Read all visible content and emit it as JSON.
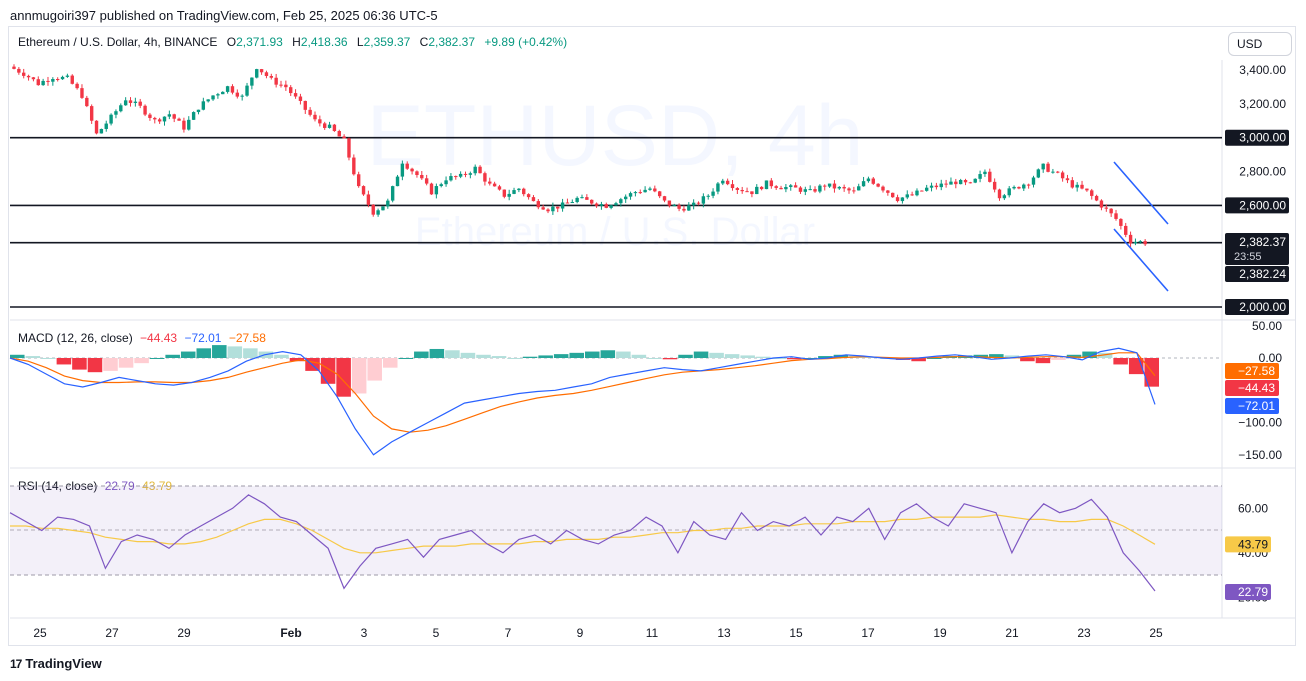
{
  "header": {
    "published_text": "annmugoiri397 published on TradingView.com, Feb 25, 2025 06:36 UTC-5"
  },
  "legend": {
    "symbol": "Ethereum / U.S. Dollar, 4h, BINANCE",
    "o_label": "O",
    "o_value": "2,371.93",
    "h_label": "H",
    "h_value": "2,418.36",
    "l_label": "L",
    "l_value": "2,359.37",
    "c_label": "C",
    "c_value": "2,382.37",
    "change": "+9.89 (+0.42%)"
  },
  "currency_button": "USD",
  "watermark": {
    "ticker": "ETHUSD, 4h",
    "name": "Ethereum / U.S. Dollar"
  },
  "macd_legend": {
    "name": "MACD (12, 26, close)",
    "hist": "−44.43",
    "macd": "−72.01",
    "signal": "−27.58"
  },
  "rsi_legend": {
    "name": "RSI (14, close)",
    "rsi": "22.79",
    "ma": "43.79"
  },
  "footer": {
    "brand": "TradingView",
    "logo": "17"
  },
  "colors": {
    "up": "#089981",
    "down": "#f23645",
    "macd": "#2962ff",
    "signal": "#ff6d00",
    "rsi": "#7e57c2",
    "rsi_ma": "#f7c948",
    "channel": "#2962ff"
  },
  "price_axis": {
    "ticks": [
      "3,400.00",
      "3,200.00",
      "3,000.00",
      "2,800.00",
      "2,600.00",
      "2,000.00"
    ],
    "current_price": "2,382.37",
    "countdown": "23:55",
    "second_price": "2,382.24"
  },
  "macd_axis": {
    "ticks": [
      "50.00",
      "0.00",
      "−100.00",
      "−150.00"
    ],
    "signal_badge": "−27.58",
    "hist_badge": "−44.43",
    "macd_badge": "−72.01"
  },
  "rsi_axis": {
    "ticks": [
      "60.00",
      "40.00",
      "20.00"
    ],
    "ma_badge": "43.79",
    "rsi_badge": "22.79"
  },
  "time_axis": [
    "25",
    "27",
    "29",
    "Feb",
    "3",
    "5",
    "7",
    "9",
    "11",
    "13",
    "15",
    "17",
    "19",
    "21",
    "23",
    "25"
  ],
  "chart_data": {
    "type": "candlestick",
    "symbol": "ETHUSD",
    "interval": "4h",
    "horizontal_levels": [
      3000,
      2600,
      2380,
      2000
    ],
    "price_path": [
      3420,
      3380,
      3320,
      3360,
      3350,
      3250,
      3020,
      3120,
      3230,
      3180,
      3100,
      3140,
      3060,
      3180,
      3250,
      3300,
      3240,
      3420,
      3340,
      3300,
      3200,
      3100,
      3060,
      2980,
      2700,
      2560,
      2620,
      2860,
      2780,
      2680,
      2760,
      2770,
      2820,
      2720,
      2660,
      2700,
      2620,
      2580,
      2600,
      2640,
      2620,
      2600,
      2640,
      2680,
      2700,
      2620,
      2580,
      2600,
      2660,
      2760,
      2700,
      2680,
      2730,
      2710,
      2700,
      2680,
      2720,
      2700,
      2680,
      2760,
      2700,
      2640,
      2660,
      2700,
      2720,
      2740,
      2720,
      2800,
      2660,
      2700,
      2740,
      2830,
      2780,
      2720,
      2680,
      2600,
      2520,
      2390,
      2382
    ],
    "macd_histogram": [
      5,
      3,
      0,
      -10,
      -18,
      -22,
      -20,
      -15,
      -8,
      0,
      5,
      10,
      15,
      20,
      18,
      15,
      10,
      5,
      -5,
      -20,
      -40,
      -60,
      -55,
      -35,
      -15,
      0,
      10,
      14,
      12,
      8,
      5,
      3,
      0,
      2,
      4,
      6,
      8,
      10,
      12,
      10,
      5,
      0,
      -2,
      5,
      10,
      8,
      6,
      4,
      2,
      0,
      -2,
      0,
      3,
      5,
      4,
      2,
      0,
      -3,
      -5,
      0,
      3,
      4,
      5,
      6,
      4,
      -5,
      -8,
      -3,
      5,
      10,
      8,
      -10,
      -25,
      -44.43
    ],
    "macd_line": [
      0,
      -10,
      -25,
      -40,
      -45,
      -38,
      -30,
      -35,
      -40,
      -42,
      -38,
      -30,
      -20,
      -5,
      5,
      10,
      5,
      -20,
      -60,
      -110,
      -150,
      -130,
      -115,
      -100,
      -85,
      -70,
      -65,
      -60,
      -55,
      -52,
      -50,
      -45,
      -40,
      -30,
      -25,
      -20,
      -15,
      -18,
      -20,
      -15,
      -10,
      -5,
      0,
      2,
      -2,
      0,
      5,
      3,
      0,
      -2,
      0,
      3,
      5,
      2,
      -2,
      0,
      3,
      5,
      2,
      -3,
      10,
      15,
      8,
      -72.01
    ],
    "signal_line": [
      0,
      -5,
      -15,
      -28,
      -35,
      -38,
      -38,
      -37,
      -37,
      -38,
      -38,
      -35,
      -30,
      -22,
      -15,
      -8,
      -3,
      -8,
      -25,
      -55,
      -90,
      -110,
      -115,
      -112,
      -105,
      -95,
      -85,
      -75,
      -68,
      -62,
      -58,
      -55,
      -50,
      -44,
      -38,
      -32,
      -26,
      -22,
      -20,
      -18,
      -15,
      -12,
      -8,
      -4,
      -2,
      -1,
      1,
      2,
      1,
      0,
      0,
      1,
      2,
      2,
      1,
      0,
      1,
      2,
      2,
      1,
      4,
      8,
      8,
      -27.58
    ],
    "rsi": [
      58,
      54,
      50,
      56,
      55,
      52,
      33,
      45,
      48,
      46,
      42,
      48,
      52,
      56,
      60,
      66,
      62,
      56,
      54,
      48,
      42,
      24,
      34,
      42,
      44,
      46,
      38,
      46,
      48,
      50,
      44,
      40,
      46,
      48,
      44,
      50,
      46,
      44,
      48,
      50,
      56,
      52,
      40,
      54,
      48,
      46,
      58,
      50,
      54,
      52,
      56,
      48,
      56,
      54,
      60,
      46,
      58,
      62,
      56,
      52,
      62,
      60,
      58,
      40,
      54,
      62,
      58,
      60,
      64,
      56,
      40,
      32,
      22.79
    ],
    "rsi_ma": [
      52,
      52,
      51,
      51,
      50,
      49,
      47,
      46,
      45,
      45,
      44,
      44,
      45,
      47,
      50,
      53,
      55,
      55,
      53,
      50,
      46,
      42,
      40,
      40,
      41,
      42,
      43,
      43,
      43,
      44,
      44,
      44,
      44,
      45,
      45,
      46,
      46,
      46,
      47,
      47,
      48,
      49,
      49,
      50,
      50,
      51,
      51,
      52,
      52,
      52,
      53,
      53,
      53,
      54,
      54,
      54,
      55,
      55,
      56,
      56,
      56,
      56,
      57,
      56,
      55,
      55,
      54,
      54,
      55,
      55,
      52,
      48,
      43.79
    ],
    "rsi_levels": [
      70,
      50,
      30
    ]
  }
}
